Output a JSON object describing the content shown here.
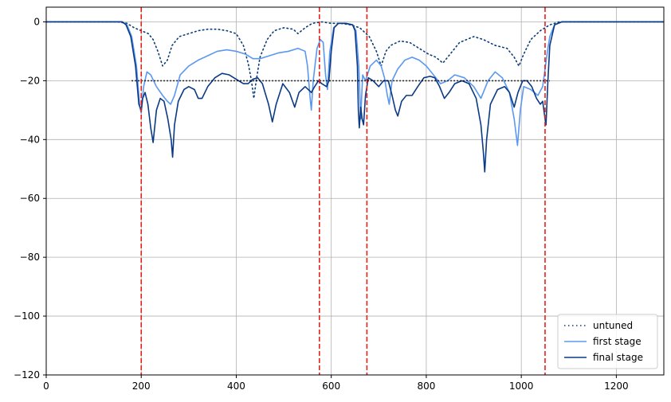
{
  "chart_data": {
    "type": "line",
    "title": "",
    "xlabel": "",
    "ylabel": "",
    "xlim": [
      0,
      1300
    ],
    "ylim": [
      -120,
      5
    ],
    "xticks": [
      0,
      200,
      400,
      600,
      800,
      1000,
      1200
    ],
    "yticks": [
      0,
      -20,
      -40,
      -60,
      -80,
      -100,
      -120
    ],
    "grid": true,
    "legend_position": "lower-right",
    "colors": {
      "untuned": "#0b3d78",
      "first_stage": "#5b98f0",
      "final_stage": "#0a3a86",
      "band_edge": "#e8201a",
      "spec": "#000000",
      "grid": "#b0b0b0"
    },
    "band_edges": [
      200,
      575,
      675,
      1050
    ],
    "spec_line": {
      "x": [
        180,
        1060
      ],
      "y": -20
    },
    "series": [
      {
        "name": "untuned",
        "style": "dotted",
        "points": [
          [
            0,
            0
          ],
          [
            150,
            0
          ],
          [
            170,
            -0.5
          ],
          [
            185,
            -2
          ],
          [
            200,
            -3
          ],
          [
            215,
            -4
          ],
          [
            225,
            -6
          ],
          [
            235,
            -10
          ],
          [
            245,
            -15
          ],
          [
            255,
            -13
          ],
          [
            265,
            -8
          ],
          [
            280,
            -5
          ],
          [
            300,
            -4
          ],
          [
            320,
            -3
          ],
          [
            340,
            -2.5
          ],
          [
            360,
            -2.5
          ],
          [
            380,
            -3
          ],
          [
            400,
            -4
          ],
          [
            415,
            -8
          ],
          [
            425,
            -14
          ],
          [
            432,
            -20
          ],
          [
            437,
            -26
          ],
          [
            442,
            -20
          ],
          [
            450,
            -12
          ],
          [
            465,
            -6
          ],
          [
            480,
            -3
          ],
          [
            500,
            -2
          ],
          [
            520,
            -2.5
          ],
          [
            530,
            -4
          ],
          [
            545,
            -2
          ],
          [
            560,
            -0.5
          ],
          [
            580,
            0
          ],
          [
            600,
            -0.5
          ],
          [
            620,
            -0.5
          ],
          [
            640,
            -1
          ],
          [
            660,
            -2
          ],
          [
            680,
            -5
          ],
          [
            695,
            -10
          ],
          [
            705,
            -15
          ],
          [
            715,
            -10
          ],
          [
            725,
            -8
          ],
          [
            745,
            -6.5
          ],
          [
            765,
            -7
          ],
          [
            785,
            -9
          ],
          [
            805,
            -11
          ],
          [
            820,
            -12
          ],
          [
            835,
            -14
          ],
          [
            850,
            -11
          ],
          [
            870,
            -7
          ],
          [
            900,
            -5
          ],
          [
            920,
            -6
          ],
          [
            945,
            -8
          ],
          [
            970,
            -9
          ],
          [
            985,
            -12
          ],
          [
            995,
            -15
          ],
          [
            1005,
            -11
          ],
          [
            1020,
            -6
          ],
          [
            1040,
            -3
          ],
          [
            1060,
            -1
          ],
          [
            1080,
            0
          ],
          [
            1300,
            0
          ]
        ]
      },
      {
        "name": "first stage",
        "style": "solid",
        "points": [
          [
            0,
            0
          ],
          [
            160,
            0
          ],
          [
            170,
            -1
          ],
          [
            180,
            -5
          ],
          [
            190,
            -15
          ],
          [
            197,
            -29
          ],
          [
            200,
            -31
          ],
          [
            205,
            -22
          ],
          [
            212,
            -17
          ],
          [
            220,
            -18
          ],
          [
            232,
            -22
          ],
          [
            245,
            -25
          ],
          [
            255,
            -27
          ],
          [
            262,
            -28
          ],
          [
            270,
            -25
          ],
          [
            282,
            -18
          ],
          [
            300,
            -15
          ],
          [
            320,
            -13
          ],
          [
            340,
            -11.5
          ],
          [
            360,
            -10
          ],
          [
            380,
            -9.5
          ],
          [
            400,
            -10
          ],
          [
            420,
            -11
          ],
          [
            435,
            -12.5
          ],
          [
            450,
            -12.5
          ],
          [
            470,
            -11.5
          ],
          [
            490,
            -10.5
          ],
          [
            510,
            -10
          ],
          [
            530,
            -9
          ],
          [
            545,
            -10
          ],
          [
            550,
            -15
          ],
          [
            555,
            -25
          ],
          [
            558,
            -30
          ],
          [
            562,
            -20
          ],
          [
            570,
            -9
          ],
          [
            577,
            -6
          ],
          [
            583,
            -7
          ],
          [
            588,
            -18
          ],
          [
            592,
            -23
          ],
          [
            597,
            -10
          ],
          [
            605,
            -2
          ],
          [
            615,
            -0.5
          ],
          [
            630,
            -0.5
          ],
          [
            645,
            -1
          ],
          [
            652,
            -3
          ],
          [
            658,
            -15
          ],
          [
            662,
            -33
          ],
          [
            666,
            -18
          ],
          [
            672,
            -20
          ],
          [
            682,
            -15
          ],
          [
            695,
            -13
          ],
          [
            705,
            -15
          ],
          [
            712,
            -19
          ],
          [
            718,
            -25
          ],
          [
            722,
            -28
          ],
          [
            728,
            -20
          ],
          [
            740,
            -16
          ],
          [
            755,
            -13
          ],
          [
            770,
            -12
          ],
          [
            785,
            -13
          ],
          [
            800,
            -15
          ],
          [
            815,
            -18
          ],
          [
            830,
            -21
          ],
          [
            845,
            -20
          ],
          [
            860,
            -18
          ],
          [
            880,
            -19
          ],
          [
            900,
            -22
          ],
          [
            915,
            -26
          ],
          [
            930,
            -20
          ],
          [
            945,
            -17
          ],
          [
            960,
            -19
          ],
          [
            975,
            -24
          ],
          [
            985,
            -33
          ],
          [
            992,
            -42
          ],
          [
            998,
            -30
          ],
          [
            1005,
            -22
          ],
          [
            1020,
            -23
          ],
          [
            1035,
            -25
          ],
          [
            1045,
            -22
          ],
          [
            1050,
            -16
          ],
          [
            1055,
            -10
          ],
          [
            1060,
            -5
          ],
          [
            1070,
            -1
          ],
          [
            1085,
            0
          ],
          [
            1300,
            0
          ]
        ]
      },
      {
        "name": "final stage",
        "style": "solid",
        "points": [
          [
            0,
            0
          ],
          [
            160,
            0
          ],
          [
            168,
            -1
          ],
          [
            178,
            -5
          ],
          [
            188,
            -15
          ],
          [
            195,
            -28
          ],
          [
            200,
            -30
          ],
          [
            203,
            -26
          ],
          [
            208,
            -24
          ],
          [
            214,
            -28
          ],
          [
            220,
            -36
          ],
          [
            225,
            -41
          ],
          [
            232,
            -30
          ],
          [
            240,
            -26
          ],
          [
            248,
            -27
          ],
          [
            256,
            -33
          ],
          [
            263,
            -40
          ],
          [
            266,
            -46
          ],
          [
            270,
            -35
          ],
          [
            278,
            -27
          ],
          [
            290,
            -23
          ],
          [
            300,
            -22
          ],
          [
            312,
            -23
          ],
          [
            320,
            -26
          ],
          [
            328,
            -26
          ],
          [
            340,
            -22
          ],
          [
            355,
            -19
          ],
          [
            370,
            -17.5
          ],
          [
            385,
            -18
          ],
          [
            400,
            -19.5
          ],
          [
            415,
            -21
          ],
          [
            425,
            -21
          ],
          [
            435,
            -19.5
          ],
          [
            445,
            -19
          ],
          [
            455,
            -21
          ],
          [
            468,
            -28
          ],
          [
            476,
            -34
          ],
          [
            484,
            -28
          ],
          [
            498,
            -21
          ],
          [
            512,
            -24
          ],
          [
            523,
            -29
          ],
          [
            532,
            -24
          ],
          [
            545,
            -22
          ],
          [
            558,
            -24
          ],
          [
            565,
            -22
          ],
          [
            573,
            -20
          ],
          [
            580,
            -21
          ],
          [
            590,
            -22
          ],
          [
            595,
            -20
          ],
          [
            600,
            -10
          ],
          [
            606,
            -2
          ],
          [
            615,
            -0.5
          ],
          [
            630,
            -0.5
          ],
          [
            645,
            -1
          ],
          [
            650,
            -3
          ],
          [
            655,
            -15
          ],
          [
            657,
            -30
          ],
          [
            659,
            -36
          ],
          [
            662,
            -29
          ],
          [
            665,
            -33
          ],
          [
            668,
            -35
          ],
          [
            672,
            -25
          ],
          [
            678,
            -19
          ],
          [
            688,
            -20
          ],
          [
            700,
            -22
          ],
          [
            710,
            -20
          ],
          [
            720,
            -20
          ],
          [
            728,
            -25
          ],
          [
            735,
            -30
          ],
          [
            740,
            -32
          ],
          [
            748,
            -27
          ],
          [
            758,
            -25
          ],
          [
            770,
            -25
          ],
          [
            782,
            -22
          ],
          [
            795,
            -19
          ],
          [
            808,
            -18.5
          ],
          [
            818,
            -19
          ],
          [
            828,
            -22
          ],
          [
            838,
            -26
          ],
          [
            848,
            -24
          ],
          [
            860,
            -21
          ],
          [
            875,
            -20
          ],
          [
            890,
            -21
          ],
          [
            905,
            -26
          ],
          [
            915,
            -35
          ],
          [
            920,
            -44
          ],
          [
            923,
            -51
          ],
          [
            927,
            -40
          ],
          [
            935,
            -28
          ],
          [
            950,
            -23
          ],
          [
            965,
            -22
          ],
          [
            975,
            -24
          ],
          [
            985,
            -29
          ],
          [
            993,
            -24
          ],
          [
            1003,
            -20
          ],
          [
            1012,
            -20
          ],
          [
            1022,
            -22
          ],
          [
            1032,
            -26
          ],
          [
            1040,
            -28
          ],
          [
            1045,
            -27
          ],
          [
            1050,
            -33
          ],
          [
            1052,
            -35
          ],
          [
            1056,
            -20
          ],
          [
            1060,
            -8
          ],
          [
            1070,
            -1
          ],
          [
            1085,
            0
          ],
          [
            1300,
            0
          ]
        ]
      }
    ]
  }
}
